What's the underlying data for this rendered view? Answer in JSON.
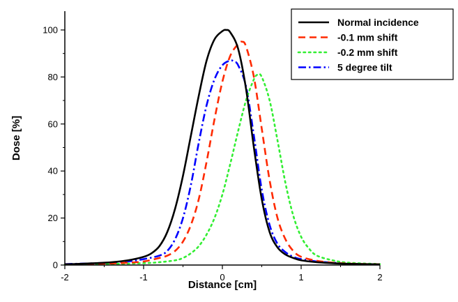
{
  "chart_data": {
    "type": "line",
    "title": "",
    "xlabel": "Distance [cm]",
    "ylabel": "Dose [%]",
    "xlim": [
      -2,
      2
    ],
    "ylim": [
      0,
      108
    ],
    "x_ticks": [
      -2,
      -1,
      0,
      1,
      2
    ],
    "y_ticks": [
      0,
      20,
      40,
      60,
      80,
      100
    ],
    "grid": false,
    "legend_position": "top-right",
    "series": [
      {
        "name": "Normal incidence",
        "color": "#000000",
        "style": "solid",
        "x": [
          -2,
          -1.6,
          -1.4,
          -1.2,
          -1.0,
          -0.9,
          -0.8,
          -0.7,
          -0.6,
          -0.5,
          -0.4,
          -0.3,
          -0.2,
          -0.1,
          0.0,
          0.05,
          0.1,
          0.2,
          0.3,
          0.4,
          0.5,
          0.6,
          0.7,
          0.8,
          0.9,
          1.0,
          1.2,
          1.4,
          1.6,
          2.0
        ],
        "y": [
          0.3,
          0.8,
          1.2,
          2,
          3.5,
          5,
          8,
          14,
          24,
          38,
          55,
          72,
          87,
          96,
          99.5,
          100,
          99,
          92,
          75,
          50,
          28,
          14,
          7.5,
          4.5,
          3,
          2,
          1.2,
          0.8,
          0.5,
          0.3
        ]
      },
      {
        "name": "-0.1 mm shift",
        "color": "#ff2a00",
        "style": "dashed",
        "x": [
          -2,
          -1.5,
          -1.2,
          -1.0,
          -0.8,
          -0.7,
          -0.6,
          -0.5,
          -0.4,
          -0.3,
          -0.2,
          -0.1,
          0.0,
          0.1,
          0.2,
          0.25,
          0.3,
          0.4,
          0.5,
          0.6,
          0.7,
          0.8,
          0.9,
          1.0,
          1.2,
          1.4,
          1.6,
          2.0
        ],
        "y": [
          0.3,
          0.6,
          1,
          1.5,
          3,
          4,
          6,
          10,
          17,
          28,
          44,
          62,
          78,
          89,
          94,
          95,
          93,
          80,
          58,
          36,
          20,
          11,
          6,
          3.5,
          1.8,
          1,
          0.6,
          0.3
        ]
      },
      {
        "name": "-0.2 mm shift",
        "color": "#33ee33",
        "style": "dotted",
        "x": [
          -2,
          -1.5,
          -1.0,
          -0.8,
          -0.6,
          -0.5,
          -0.4,
          -0.3,
          -0.2,
          -0.1,
          0.0,
          0.1,
          0.2,
          0.3,
          0.4,
          0.45,
          0.5,
          0.6,
          0.7,
          0.8,
          0.9,
          1.0,
          1.1,
          1.2,
          1.4,
          1.6,
          2.0
        ],
        "y": [
          0.2,
          0.4,
          0.8,
          1.2,
          2,
          3,
          5,
          8,
          13,
          20,
          30,
          43,
          57,
          70,
          79,
          81,
          80,
          70,
          53,
          35,
          21,
          12,
          7,
          4,
          2,
          1,
          0.4
        ]
      },
      {
        "name": "5 degree tilt",
        "color": "#0000ff",
        "style": "dashdot",
        "x": [
          -2,
          -1.5,
          -1.2,
          -1.0,
          -0.8,
          -0.7,
          -0.6,
          -0.5,
          -0.4,
          -0.3,
          -0.2,
          -0.1,
          0.0,
          0.1,
          0.15,
          0.2,
          0.3,
          0.4,
          0.5,
          0.6,
          0.7,
          0.8,
          0.9,
          1.0,
          1.2,
          1.4,
          1.6,
          2.0
        ],
        "y": [
          0.4,
          0.9,
          1.5,
          2.5,
          4,
          6,
          11,
          20,
          34,
          52,
          68,
          79,
          85,
          87,
          86.5,
          85,
          76,
          55,
          32,
          17,
          9,
          5.5,
          3.5,
          2.5,
          1.5,
          1,
          0.6,
          0.3
        ]
      }
    ]
  }
}
